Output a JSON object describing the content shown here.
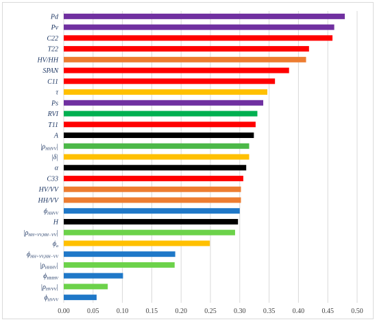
{
  "chart_data": {
    "type": "bar",
    "orientation": "horizontal",
    "title": "",
    "xlabel": "",
    "ylabel": "",
    "xlim": [
      0,
      0.5
    ],
    "xticks": [
      "0.00",
      "0.05",
      "0.10",
      "0.15",
      "0.20",
      "0.25",
      "0.30",
      "0.35",
      "0.40",
      "0.45",
      "0.50"
    ],
    "grid": true,
    "legend": "none",
    "categories": [
      {
        "label": "Pd",
        "value": 0.479,
        "color": "#7030a0"
      },
      {
        "label": "Pv",
        "value": 0.461,
        "color": "#7030a0"
      },
      {
        "label": "C22",
        "value": 0.458,
        "color": "#ff0000"
      },
      {
        "label": "T22",
        "value": 0.418,
        "color": "#ff0000"
      },
      {
        "label": "HV/HH",
        "value": 0.413,
        "color": "#ed7d31"
      },
      {
        "label": "SPAN",
        "value": 0.384,
        "color": "#ff0000"
      },
      {
        "label": "C11",
        "value": 0.36,
        "color": "#ff0000"
      },
      {
        "label": "τ",
        "value": 0.347,
        "color": "#ffc000"
      },
      {
        "label": "Ps",
        "value": 0.34,
        "color": "#7030a0"
      },
      {
        "label": "RVI",
        "value": 0.33,
        "color": "#00b050"
      },
      {
        "label": "T11",
        "value": 0.327,
        "color": "#ff0000"
      },
      {
        "label": "A",
        "value": 0.324,
        "color": "#000000"
      },
      {
        "label": "|ρ",
        "sub": "HHVV",
        "post": "|",
        "value": 0.316,
        "color": "#4cb848"
      },
      {
        "label": "|δ|",
        "value": 0.316,
        "color": "#ffc000"
      },
      {
        "label": "α",
        "value": 0.311,
        "color": "#000000"
      },
      {
        "label": "C33",
        "value": 0.306,
        "color": "#ff0000"
      },
      {
        "label": "HV/VV",
        "value": 0.302,
        "color": "#ed7d31"
      },
      {
        "label": "HH/VV",
        "value": 0.302,
        "color": "#ed7d31"
      },
      {
        "label": "ϕ",
        "sub": "HHVV",
        "post": "",
        "value": 0.3,
        "color": "#1f78c8"
      },
      {
        "label": "H",
        "value": 0.297,
        "color": "#000000"
      },
      {
        "label": "|ρ",
        "sub": "HH+VV,HH−VV",
        "post": "|",
        "value": 0.292,
        "color": "#6cd24a"
      },
      {
        "label": "ϕ",
        "sub": "a",
        "post": "",
        "value": 0.249,
        "color": "#ffc000"
      },
      {
        "label": "ϕ",
        "sub": "HH+VV,HH−VV",
        "post": "",
        "value": 0.19,
        "color": "#1f78c8"
      },
      {
        "label": "|ρ",
        "sub": "HHHV",
        "post": "|",
        "value": 0.189,
        "color": "#6cd24a"
      },
      {
        "label": "ϕ",
        "sub": "HHHV",
        "post": "",
        "value": 0.101,
        "color": "#1f78c8"
      },
      {
        "label": "|ρ",
        "sub": "HVVV",
        "post": "|",
        "value": 0.075,
        "color": "#6cd24a"
      },
      {
        "label": "ϕ",
        "sub": "HVVV",
        "post": "",
        "value": 0.056,
        "color": "#1f78c8"
      }
    ]
  }
}
